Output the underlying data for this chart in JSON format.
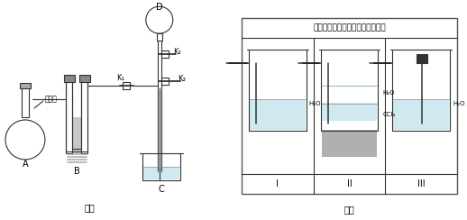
{
  "bg_color": "#f5f5f5",
  "line_color": "#333333",
  "fig1_label": "图一",
  "fig2_label": "图二",
  "label_A": "A",
  "label_B": "B",
  "label_C": "C",
  "label_D": "D",
  "label_K1": "K₁",
  "label_K2": "K₂",
  "label_K3": "K₃",
  "label_nongqingshui": "浓氨水",
  "box_title": "备选装置（其中水中含酵酶试液）",
  "label_I": "I",
  "label_II": "II",
  "label_III": "III",
  "label_H2O_I": "H₂O",
  "label_H2O_II": "H₂O",
  "label_CCl4": "CCl₄",
  "label_H2O_III": "H₂O",
  "water_color": "#d0e8f0",
  "ccl4_color": "#b0b0b0",
  "gravel_color": "#c8c8c8"
}
